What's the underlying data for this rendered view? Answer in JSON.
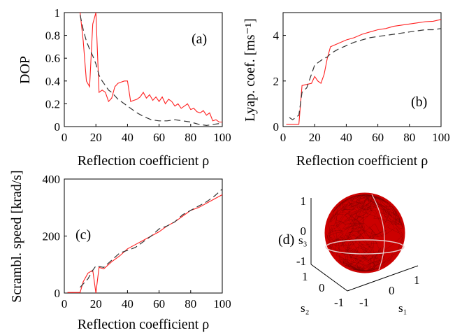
{
  "figure": {
    "colors": {
      "red": "#ff2020",
      "dashed": "#333333",
      "sphere": "#cc0000"
    }
  },
  "chart_data": [
    {
      "id": "a",
      "type": "line",
      "panel_label": "(a)",
      "xlabel": "Reflection coefficient ρ",
      "ylabel": "DOP",
      "xlim": [
        0,
        100
      ],
      "ylim": [
        0,
        1
      ],
      "xticks": [
        "0",
        "20",
        "40",
        "60",
        "80",
        "100"
      ],
      "yticks": [
        "0",
        "0.2",
        "0.4",
        "0.6",
        "0.8",
        "1"
      ],
      "series": [
        {
          "style": "solid-red",
          "x": [
            10,
            12,
            14,
            16,
            18,
            20,
            22,
            24,
            26,
            28,
            30,
            32,
            34,
            36,
            38,
            40,
            42,
            44,
            46,
            48,
            50,
            52,
            54,
            56,
            58,
            60,
            62,
            64,
            66,
            68,
            70,
            72,
            74,
            76,
            78,
            80,
            82,
            84,
            86,
            88,
            90,
            92,
            94,
            96,
            98,
            100
          ],
          "y": [
            1.0,
            0.75,
            0.4,
            0.35,
            0.9,
            1.0,
            0.3,
            0.32,
            0.3,
            0.22,
            0.25,
            0.35,
            0.38,
            0.39,
            0.4,
            0.4,
            0.22,
            0.23,
            0.24,
            0.26,
            0.3,
            0.25,
            0.28,
            0.23,
            0.26,
            0.22,
            0.26,
            0.2,
            0.24,
            0.22,
            0.18,
            0.2,
            0.16,
            0.18,
            0.2,
            0.15,
            0.16,
            0.13,
            0.12,
            0.14,
            0.1,
            0.12,
            0.05,
            0.06,
            0.04,
            0.04
          ]
        },
        {
          "style": "dashed-black",
          "x": [
            10,
            12,
            14,
            16,
            18,
            20,
            22,
            24,
            26,
            28,
            30,
            34,
            38,
            42,
            46,
            50,
            55,
            60,
            65,
            70,
            75,
            80,
            85,
            90,
            95,
            100
          ],
          "y": [
            0.98,
            0.85,
            0.75,
            0.68,
            0.62,
            0.55,
            0.45,
            0.4,
            0.36,
            0.32,
            0.3,
            0.24,
            0.2,
            0.16,
            0.12,
            0.09,
            0.06,
            0.05,
            0.05,
            0.06,
            0.05,
            0.04,
            0.02,
            0.01,
            0.02,
            0.03
          ]
        }
      ]
    },
    {
      "id": "b",
      "type": "line",
      "panel_label": "(b)",
      "xlabel": "Reflection coefficient ρ",
      "ylabel": "Lyap. coef. [ms⁻¹]",
      "xlim": [
        0,
        100
      ],
      "ylim": [
        0,
        5
      ],
      "xticks": [
        "0",
        "20",
        "40",
        "60",
        "80",
        "100"
      ],
      "yticks": [
        "0",
        "2",
        "4"
      ],
      "series": [
        {
          "style": "solid-red",
          "x": [
            2,
            5,
            10,
            12,
            15,
            18,
            20,
            22,
            24,
            26,
            28,
            30,
            35,
            40,
            45,
            50,
            55,
            60,
            65,
            70,
            75,
            80,
            85,
            90,
            95,
            100
          ],
          "y": [
            0.1,
            0.1,
            0.1,
            1.8,
            1.85,
            1.9,
            2.2,
            2.0,
            1.9,
            2.3,
            3.0,
            3.5,
            3.65,
            3.8,
            3.9,
            4.05,
            4.15,
            4.25,
            4.3,
            4.4,
            4.45,
            4.5,
            4.55,
            4.6,
            4.62,
            4.7
          ]
        },
        {
          "style": "dashed-black",
          "x": [
            4,
            6,
            8,
            10,
            12,
            15,
            18,
            20,
            22,
            24,
            26,
            28,
            30,
            35,
            40,
            45,
            50,
            55,
            60,
            65,
            70,
            75,
            80,
            85,
            90,
            95,
            100
          ],
          "y": [
            0.4,
            0.3,
            0.4,
            0.5,
            1.5,
            1.7,
            2.3,
            2.7,
            2.8,
            2.9,
            3.0,
            3.05,
            3.2,
            3.4,
            3.55,
            3.7,
            3.8,
            3.9,
            3.95,
            4.0,
            4.05,
            4.1,
            4.15,
            4.2,
            4.25,
            4.25,
            4.3
          ]
        }
      ]
    },
    {
      "id": "c",
      "type": "line",
      "panel_label": "(c)",
      "xlabel": "Reflection coefficient ρ",
      "ylabel": "Scrambl. speed [krad/s]",
      "xlim": [
        0,
        100
      ],
      "ylim": [
        0,
        400
      ],
      "xticks": [
        "0",
        "20",
        "40",
        "60",
        "80",
        "100"
      ],
      "yticks": [
        "0",
        "200",
        "400"
      ],
      "series": [
        {
          "style": "solid-red",
          "x": [
            2,
            5,
            10,
            12,
            15,
            18,
            20,
            22,
            25,
            30,
            35,
            40,
            45,
            50,
            55,
            60,
            65,
            70,
            75,
            80,
            85,
            90,
            95,
            100
          ],
          "y": [
            2,
            2,
            2,
            40,
            70,
            80,
            0,
            90,
            85,
            110,
            130,
            155,
            170,
            185,
            200,
            215,
            235,
            250,
            270,
            290,
            300,
            315,
            330,
            345
          ]
        },
        {
          "style": "dashed-black",
          "x": [
            10,
            15,
            18,
            20,
            25,
            30,
            35,
            40,
            45,
            50,
            55,
            60,
            65,
            70,
            75,
            80,
            85,
            90,
            95,
            100
          ],
          "y": [
            20,
            50,
            80,
            95,
            90,
            115,
            140,
            150,
            160,
            180,
            200,
            225,
            235,
            250,
            275,
            290,
            305,
            320,
            340,
            365
          ]
        }
      ]
    }
  ],
  "sphere_panel": {
    "panel_label": "(d)",
    "s3_axis_label": "s₃",
    "s2_axis_label": "s₂",
    "s1_axis_label": "s₁",
    "s3_ticks": [
      "1",
      "0",
      "-1"
    ],
    "s2_ticks": [
      "1",
      "0",
      "-1"
    ],
    "s1_ticks": [
      "-1",
      "0",
      "1"
    ]
  }
}
